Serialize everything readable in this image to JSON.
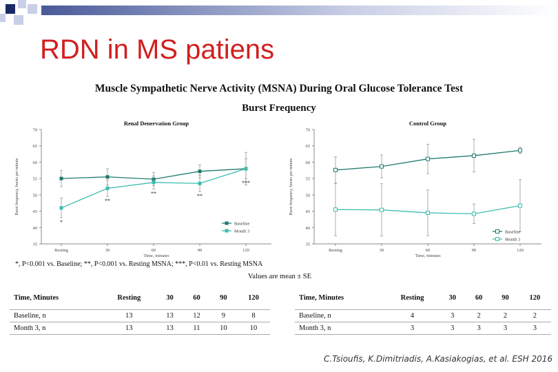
{
  "title": "RDN in MS patiens",
  "heading": "Muscle Sympathetic  Nerve Activity (MSNA) During Oral Glucose Tolerance Test",
  "subheading": "Burst Frequency",
  "footnote": "*, P<0.001 vs. Baseline; **, P<0.001 vs. Resting MSNA; ***, P<0.01 vs. Resting MSNA",
  "values_note": "Values are mean ± SE",
  "citation": "C.Tsioufis, K.Dimitriadis, A.Kasiakogias,  et al. ESH 2016",
  "colors": {
    "title": "#d11f1f",
    "baseline": "#1f7a6d",
    "month3": "#3cbdb0",
    "deco_dark": "#1b2a66",
    "deco_light": "#c9cfe6"
  },
  "chart_data": [
    {
      "type": "line",
      "title": "Renal Denervation Group",
      "xlabel": "Time, minutes",
      "ylabel": "Burst frequency, bursts per minute",
      "categories": [
        "Resting",
        "30",
        "60",
        "90",
        "120"
      ],
      "ylim": [
        35,
        70
      ],
      "yticks": [
        "35",
        "40",
        "45",
        "50",
        "55",
        "60",
        "65",
        "70"
      ],
      "series": [
        {
          "name": "Baseline",
          "values": [
            55,
            55.5,
            54.8,
            57.2,
            58
          ],
          "errors": [
            2.5,
            2.5,
            2,
            2,
            5
          ]
        },
        {
          "name": "Month 3",
          "values": [
            46,
            52,
            53.8,
            53.5,
            58
          ],
          "errors": [
            3,
            2.5,
            2,
            2.5,
            3
          ]
        }
      ],
      "annotations": [
        {
          "category": "Resting",
          "text": "*"
        },
        {
          "category": "30",
          "text": "**"
        },
        {
          "category": "60",
          "text": "**"
        },
        {
          "category": "90",
          "text": "**"
        },
        {
          "category": "120",
          "text": "***"
        }
      ],
      "legend": "bottom-right",
      "grid": false
    },
    {
      "type": "line",
      "title": "Control Group",
      "xlabel": "Time, minutes",
      "ylabel": "Burst frequency, bursts per minute",
      "categories": [
        "Resting",
        "30",
        "60",
        "90",
        "120"
      ],
      "ylim": [
        35,
        70
      ],
      "yticks": [
        "35",
        "40",
        "45",
        "50",
        "55",
        "60",
        "65",
        "70"
      ],
      "series": [
        {
          "name": "Baseline",
          "values": [
            57.6,
            58.7,
            61,
            62,
            63.6
          ],
          "errors": [
            4,
            3.5,
            4.5,
            5,
            1
          ]
        },
        {
          "name": "Month 3",
          "values": [
            45.5,
            45.4,
            44.5,
            44.2,
            46.7
          ],
          "errors": [
            8,
            8,
            7,
            3,
            8
          ]
        }
      ],
      "legend": "bottom-right",
      "grid": false
    }
  ],
  "tables": [
    {
      "headers": [
        "Time, Minutes",
        "Resting",
        "30",
        "60",
        "90",
        "120"
      ],
      "rows": [
        [
          "Baseline, n",
          "13",
          "13",
          "12",
          "9",
          "8"
        ],
        [
          "Month 3, n",
          "13",
          "13",
          "11",
          "10",
          "10"
        ]
      ]
    },
    {
      "headers": [
        "Time, Minutes",
        "Resting",
        "30",
        "60",
        "90",
        "120"
      ],
      "rows": [
        [
          "Baseline, n",
          "4",
          "3",
          "2",
          "2",
          "2"
        ],
        [
          "Month 3, n",
          "3",
          "3",
          "3",
          "3",
          "3"
        ]
      ]
    }
  ]
}
